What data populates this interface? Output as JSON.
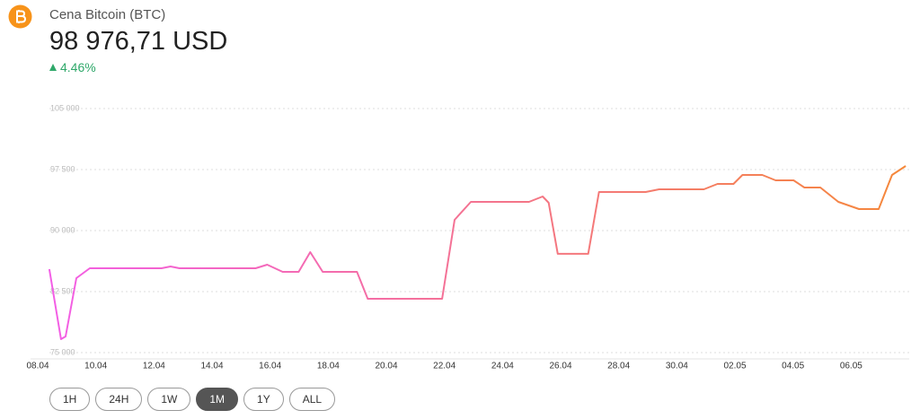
{
  "header": {
    "title": "Cena Bitcoin (BTC)",
    "price": "98 976,71 USD",
    "change": "4.46%"
  },
  "chart_data": {
    "type": "line",
    "x": [
      0.4,
      0.8,
      0.96,
      1.33,
      1.79,
      4.26,
      4.57,
      4.88,
      7.5,
      7.9,
      8.43,
      8.98,
      9.38,
      9.81,
      10.99,
      11.36,
      13.92,
      14.35,
      14.91,
      16.91,
      17.38,
      17.59,
      17.9,
      18.95,
      19.32,
      20.93,
      21.39,
      22.93,
      23.4,
      23.95,
      24.26,
      24.94,
      25.4,
      26.02,
      26.39,
      26.94,
      27.56,
      28.27,
      28.95,
      29.41,
      29.88
    ],
    "series": [
      {
        "colors": [
          "#f35ee6",
          "#f5883a"
        ],
        "values": [
          85260,
          76650,
          76990,
          84150,
          85370,
          85370,
          85590,
          85370,
          85370,
          85810,
          84930,
          84930,
          87350,
          84930,
          84930,
          81620,
          81620,
          91320,
          93530,
          93530,
          94190,
          93420,
          87140,
          87140,
          94740,
          94740,
          95070,
          95070,
          95740,
          95740,
          96840,
          96840,
          96180,
          96180,
          95290,
          95290,
          93530,
          92650,
          92650,
          96840,
          97940
        ]
      }
    ],
    "xlim": [
      0,
      30
    ],
    "xticks": [
      {
        "value": 0,
        "label": "08.04"
      },
      {
        "value": 2,
        "label": "10.04"
      },
      {
        "value": 4,
        "label": "12.04"
      },
      {
        "value": 6,
        "label": "14.04"
      },
      {
        "value": 8,
        "label": "16.04"
      },
      {
        "value": 10,
        "label": "18.04"
      },
      {
        "value": 12,
        "label": "20.04"
      },
      {
        "value": 14,
        "label": "22.04"
      },
      {
        "value": 16,
        "label": "24.04"
      },
      {
        "value": 18,
        "label": "26.04"
      },
      {
        "value": 20,
        "label": "28.04"
      },
      {
        "value": 22,
        "label": "30.04"
      },
      {
        "value": 24,
        "label": "02.05"
      },
      {
        "value": 26,
        "label": "04.05"
      },
      {
        "value": 28,
        "label": "06.05"
      }
    ],
    "ylim": [
      75000,
      105000
    ],
    "yticks": [
      {
        "value": 75000,
        "label": "75 000"
      },
      {
        "value": 82500,
        "label": "82 500"
      },
      {
        "value": 90000,
        "label": "90 000"
      },
      {
        "value": 97500,
        "label": "97 500"
      },
      {
        "value": 105000,
        "label": "105 000"
      }
    ],
    "grid": true
  },
  "buttons": [
    "1H",
    "24H",
    "1W",
    "1M",
    "1Y",
    "ALL"
  ],
  "active_button": 3
}
